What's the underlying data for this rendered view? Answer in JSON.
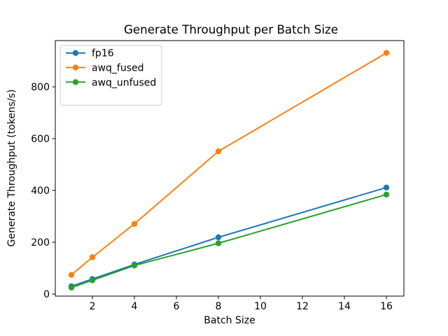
{
  "chart_data": {
    "type": "line",
    "title": "Generate Throughput per Batch Size",
    "xlabel": "Batch Size",
    "ylabel": "Generate Throughput (tokens/s)",
    "x": [
      1,
      2,
      4,
      8,
      16
    ],
    "series": [
      {
        "name": "fp16",
        "color": "#1f77b4",
        "values": [
          30,
          58,
          114,
          219,
          411
        ]
      },
      {
        "name": "awq_fused",
        "color": "#ff7f0e",
        "values": [
          74,
          142,
          271,
          551,
          931
        ]
      },
      {
        "name": "awq_unfused",
        "color": "#2ca02c",
        "values": [
          25,
          53,
          110,
          196,
          384
        ]
      }
    ],
    "xticks": [
      2,
      4,
      6,
      8,
      10,
      12,
      14,
      16
    ],
    "yticks": [
      0,
      200,
      400,
      600,
      800
    ],
    "xlim": [
      0.233,
      16.833
    ],
    "ylim": [
      -8,
      978.5
    ],
    "grid": false,
    "marker": "o",
    "legend_position": "upper left",
    "legend_border_color": "#cccccc",
    "axis_color": "#000000",
    "background_color": "#ffffff"
  }
}
